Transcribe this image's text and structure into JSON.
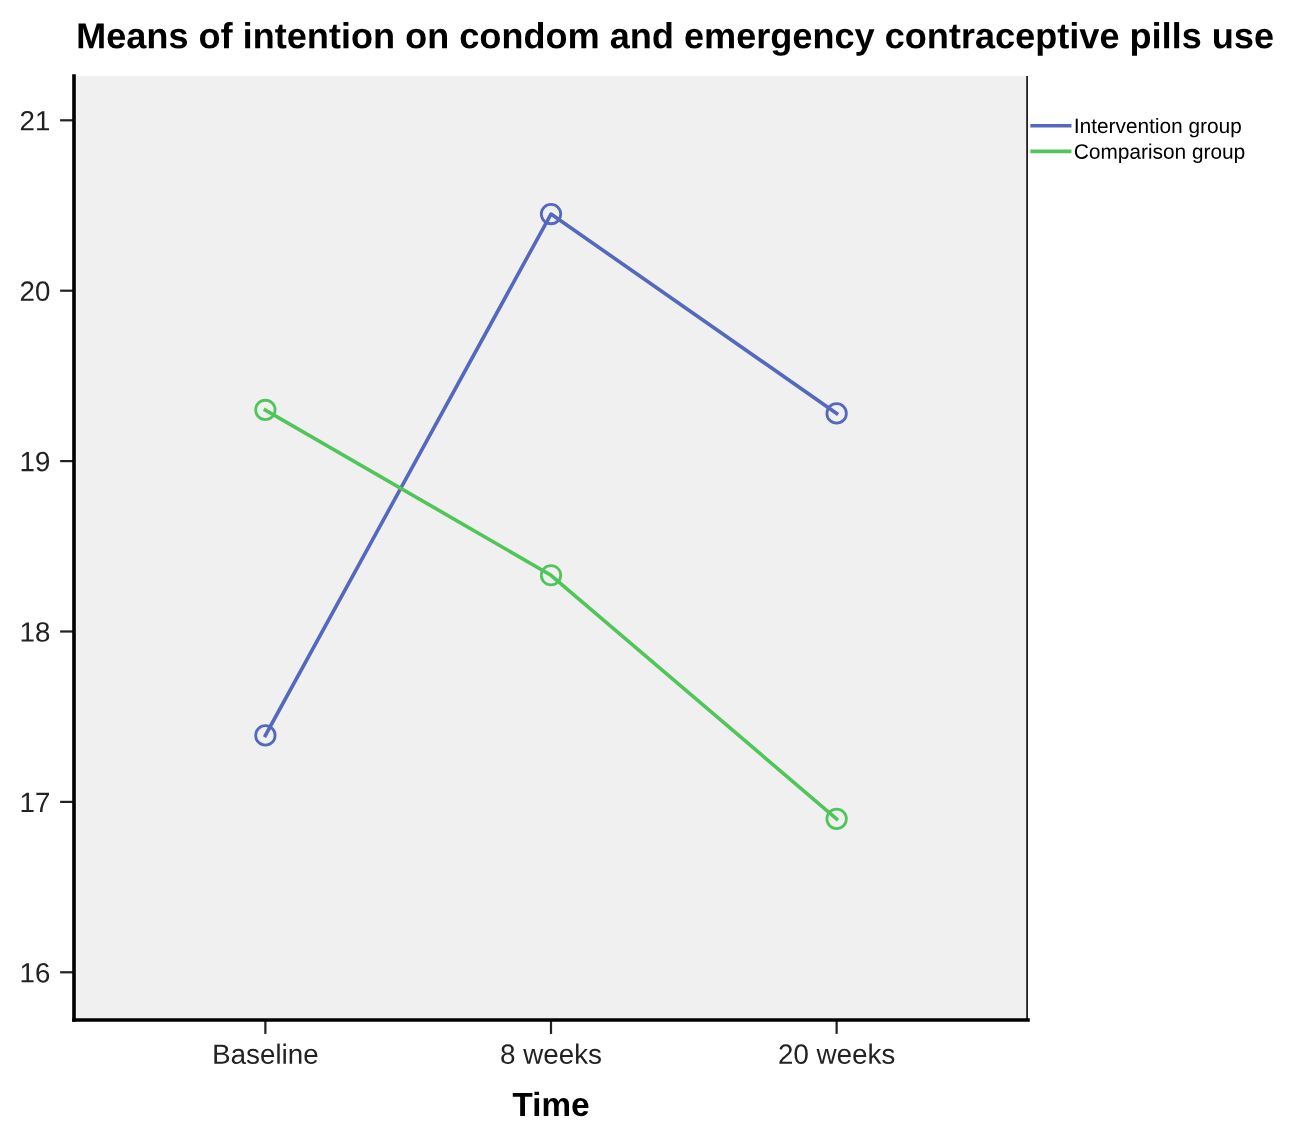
{
  "chart_data": {
    "type": "line",
    "title": "Means of intention on condom and emergency contraceptive pills use",
    "xlabel": "Time",
    "categories": [
      "Baseline",
      "8 weeks",
      "20 weeks"
    ],
    "series": [
      {
        "name": "Intervention group",
        "color": "#5468bd",
        "values": [
          17.39,
          20.45,
          19.28
        ]
      },
      {
        "name": "Comparison group",
        "color": "#50c55a",
        "values": [
          19.3,
          18.33,
          16.9
        ]
      }
    ],
    "ylim": [
      15.72,
      21.26
    ],
    "yticks": [
      16,
      17,
      18,
      19,
      20,
      21
    ],
    "grid": false,
    "legend": "top right",
    "marker": "circle",
    "line_style": "solid"
  }
}
